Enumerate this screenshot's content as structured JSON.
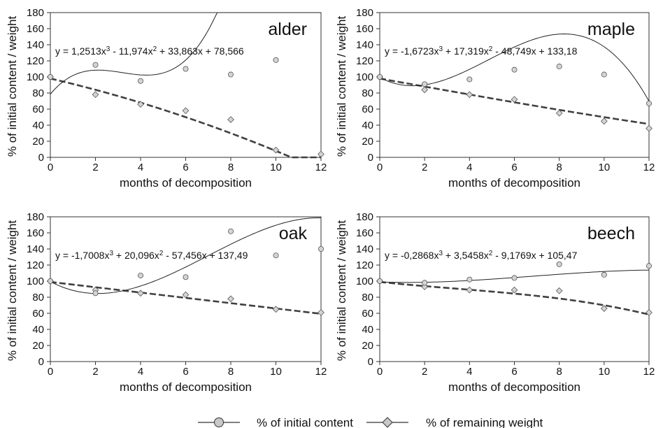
{
  "figure": {
    "legend": {
      "content_label": "% of initial content",
      "weight_label": "% of remaining weight"
    }
  },
  "chart_data": [
    {
      "type": "scatter",
      "title": "alder",
      "equation": "y = 1,2513x3 - 11,974x2 + 33,863x + 78,566",
      "xlabel": "months of decomposition",
      "ylabel": "% of initial content / weight",
      "xlim": [
        0,
        12
      ],
      "ylim": [
        0,
        180
      ],
      "x_ticks": [
        0,
        2,
        4,
        6,
        8,
        10,
        12
      ],
      "y_ticks": [
        0,
        20,
        40,
        60,
        80,
        100,
        120,
        140,
        160,
        180
      ],
      "grid": false,
      "series": [
        {
          "name": "% of initial content",
          "marker": "circle",
          "x": [
            0,
            2,
            4,
            6,
            8,
            10
          ],
          "values": [
            100,
            115,
            95,
            110,
            103,
            121
          ]
        },
        {
          "name": "% of remaining weight",
          "marker": "diamond",
          "x": [
            0,
            2,
            4,
            6,
            8,
            10,
            12
          ],
          "values": [
            100,
            78,
            66,
            58,
            47,
            9,
            4
          ]
        }
      ],
      "fit_content": [
        78.566,
        33.863,
        -11.974,
        1.2513
      ],
      "fit_weight": [
        98,
        -6.5,
        -0.25,
        0
      ]
    },
    {
      "type": "scatter",
      "title": "maple",
      "equation": "y = -1,6723x3 + 17,319x2 - 48,749x + 133,18",
      "xlabel": "months of decomposition",
      "ylabel": "% of initial content / weight",
      "xlim": [
        0,
        12
      ],
      "ylim": [
        0,
        180
      ],
      "x_ticks": [
        0,
        2,
        4,
        6,
        8,
        10,
        12
      ],
      "y_ticks": [
        0,
        20,
        40,
        60,
        80,
        100,
        120,
        140,
        160,
        180
      ],
      "grid": false,
      "series": [
        {
          "name": "% of initial content",
          "marker": "circle",
          "x": [
            0,
            2,
            4,
            6,
            8,
            10,
            12
          ],
          "values": [
            100,
            91,
            97,
            109,
            113,
            103,
            67
          ]
        },
        {
          "name": "% of remaining weight",
          "marker": "diamond",
          "x": [
            0,
            2,
            4,
            6,
            8,
            10,
            12
          ],
          "values": [
            100,
            84,
            78,
            72,
            55,
            45,
            36
          ]
        }
      ],
      "fit_content": [
        99.5,
        -15.2,
        6.1,
        -0.42
      ],
      "fit_weight": [
        98,
        -5,
        0,
        0.002
      ]
    },
    {
      "type": "scatter",
      "title": "oak",
      "equation": "y = -1,7008x3 + 20,096x2 - 57,456x + 137,49",
      "xlabel": "months of decomposition",
      "ylabel": "% of initial content / weight",
      "xlim": [
        0,
        12
      ],
      "ylim": [
        0,
        180
      ],
      "x_ticks": [
        0,
        2,
        4,
        6,
        8,
        10,
        12
      ],
      "y_ticks": [
        0,
        20,
        40,
        60,
        80,
        100,
        120,
        140,
        160,
        180
      ],
      "grid": false,
      "series": [
        {
          "name": "% of initial content",
          "marker": "circle",
          "x": [
            0,
            2,
            4,
            6,
            8,
            10,
            12
          ],
          "values": [
            100,
            85,
            107,
            105,
            162,
            132,
            140
          ]
        },
        {
          "name": "% of remaining weight",
          "marker": "diamond",
          "x": [
            0,
            2,
            4,
            6,
            8,
            10,
            12
          ],
          "values": [
            100,
            89,
            85,
            83,
            78,
            65,
            61
          ]
        }
      ],
      "fit_content": [
        99.5,
        -15,
        4.2,
        -0.2
      ],
      "fit_weight": [
        99,
        -3.3,
        0,
        0
      ]
    },
    {
      "type": "scatter",
      "title": "beech",
      "equation": "y = -0,2868x3 + 3,5458x2 - 9,1769x + 105,47",
      "xlabel": "months of decomposition",
      "ylabel": "% of initial content / weight",
      "xlim": [
        0,
        12
      ],
      "ylim": [
        0,
        180
      ],
      "x_ticks": [
        0,
        2,
        4,
        6,
        8,
        10,
        12
      ],
      "y_ticks": [
        0,
        20,
        40,
        60,
        80,
        100,
        120,
        140,
        160,
        180
      ],
      "grid": false,
      "series": [
        {
          "name": "% of initial content",
          "marker": "circle",
          "x": [
            0,
            2,
            4,
            6,
            8,
            10,
            12
          ],
          "values": [
            100,
            98,
            102,
            104,
            121,
            108,
            119
          ]
        },
        {
          "name": "% of remaining weight",
          "marker": "diamond",
          "x": [
            0,
            2,
            4,
            6,
            8,
            10,
            12
          ],
          "values": [
            100,
            93,
            89,
            89,
            88,
            66,
            61
          ]
        }
      ],
      "fit_content": [
        99,
        -1,
        0.45,
        -0.022
      ],
      "fit_weight": [
        99,
        -2.9,
        0.2,
        -0.02
      ]
    }
  ]
}
